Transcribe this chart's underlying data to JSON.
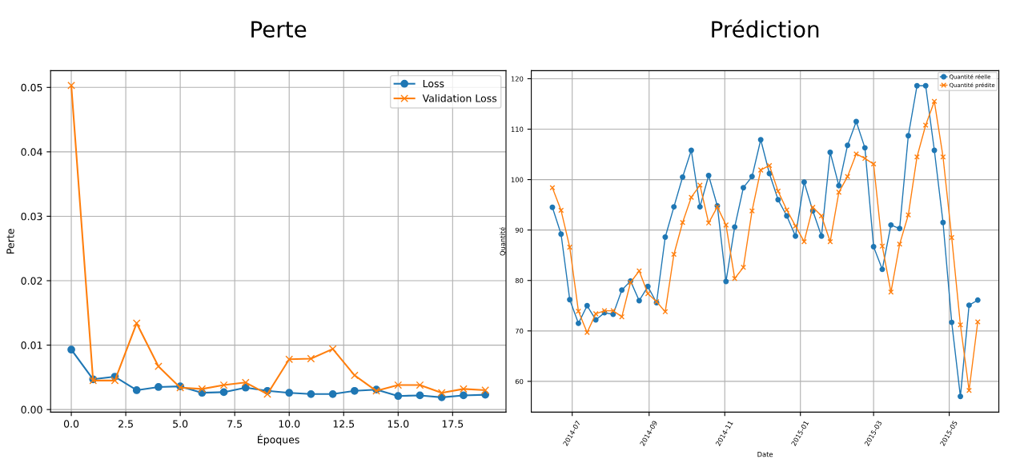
{
  "chart_data": [
    {
      "type": "line",
      "title": "Perte",
      "xlabel": "Époques",
      "ylabel": "Perte",
      "x": [
        0,
        1,
        2,
        3,
        4,
        5,
        6,
        7,
        8,
        9,
        10,
        11,
        12,
        13,
        14,
        15,
        16,
        17,
        18,
        19
      ],
      "series": [
        {
          "name": "Loss",
          "color": "#1f77b4",
          "marker": "circle",
          "values": [
            0.0093,
            0.0047,
            0.0051,
            0.003,
            0.0035,
            0.0036,
            0.0026,
            0.0027,
            0.0034,
            0.0029,
            0.0026,
            0.0024,
            0.0024,
            0.0029,
            0.0031,
            0.0021,
            0.0022,
            0.0019,
            0.0022,
            0.0023
          ]
        },
        {
          "name": "Validation Loss",
          "color": "#ff7f0e",
          "marker": "cross",
          "values": [
            0.0503,
            0.0045,
            0.0045,
            0.0134,
            0.0067,
            0.0034,
            0.0032,
            0.0038,
            0.0042,
            0.0024,
            0.0078,
            0.0079,
            0.0094,
            0.0053,
            0.0029,
            0.0038,
            0.0038,
            0.0026,
            0.0032,
            0.003
          ]
        }
      ],
      "xlim": [
        -0.95,
        19.95
      ],
      "xticks": [
        {
          "value": 0,
          "label": "0.0"
        },
        {
          "value": 2.5,
          "label": "2.5"
        },
        {
          "value": 5,
          "label": "5.0"
        },
        {
          "value": 7.5,
          "label": "7.5"
        },
        {
          "value": 10,
          "label": "10.0"
        },
        {
          "value": 12.5,
          "label": "12.5"
        },
        {
          "value": 15,
          "label": "15.0"
        },
        {
          "value": 17.5,
          "label": "17.5"
        }
      ],
      "ylim": [
        -0.0004,
        0.0526
      ],
      "yticks": [
        {
          "value": 0,
          "label": "0.00"
        },
        {
          "value": 0.01,
          "label": "0.01"
        },
        {
          "value": 0.02,
          "label": "0.02"
        },
        {
          "value": 0.03,
          "label": "0.03"
        },
        {
          "value": 0.04,
          "label": "0.04"
        },
        {
          "value": 0.05,
          "label": "0.05"
        }
      ],
      "grid": true,
      "legend": "top right",
      "line_style": "solid"
    },
    {
      "type": "line",
      "title": "Prédiction",
      "xlabel": "Date",
      "ylabel": "Quantité",
      "x": [
        "2014-06-15",
        "2014-06-22",
        "2014-06-29",
        "2014-07-06",
        "2014-07-13",
        "2014-07-20",
        "2014-07-27",
        "2014-08-03",
        "2014-08-10",
        "2014-08-17",
        "2014-08-24",
        "2014-08-31",
        "2014-09-07",
        "2014-09-14",
        "2014-09-21",
        "2014-09-28",
        "2014-10-05",
        "2014-10-12",
        "2014-10-19",
        "2014-10-26",
        "2014-11-02",
        "2014-11-09",
        "2014-11-16",
        "2014-11-23",
        "2014-11-30",
        "2014-12-07",
        "2014-12-14",
        "2014-12-21",
        "2014-12-28",
        "2015-01-04",
        "2015-01-11",
        "2015-01-18",
        "2015-01-25",
        "2015-02-01",
        "2015-02-08",
        "2015-02-15",
        "2015-02-22",
        "2015-03-01",
        "2015-03-08",
        "2015-03-15",
        "2015-03-22",
        "2015-03-29",
        "2015-04-05",
        "2015-04-12",
        "2015-04-19",
        "2015-04-26",
        "2015-05-03",
        "2015-05-10",
        "2015-05-17",
        "2015-05-24"
      ],
      "series": [
        {
          "name": "Quantité réelle",
          "color": "#1f77b4",
          "marker": "circle",
          "values": [
            94.5,
            89.2,
            76.2,
            71.5,
            75.0,
            72.2,
            73.6,
            73.3,
            78.1,
            79.9,
            76.0,
            78.8,
            75.6,
            88.6,
            94.6,
            100.5,
            105.8,
            94.6,
            100.8,
            94.8,
            79.8,
            90.6,
            98.4,
            100.6,
            107.9,
            101.2,
            96.0,
            92.8,
            88.8,
            99.5,
            93.8,
            88.8,
            105.4,
            98.8,
            106.8,
            111.5,
            106.3,
            86.7,
            82.2,
            91.0,
            90.3,
            108.7,
            118.6,
            118.6,
            105.8,
            91.5,
            71.7,
            57.0,
            75.1,
            76.1
          ]
        },
        {
          "name": "Quantité prédite",
          "color": "#ff7f0e",
          "marker": "cross",
          "values": [
            98.4,
            93.9,
            86.6,
            73.9,
            69.7,
            73.4,
            74.0,
            74.0,
            72.8,
            79.6,
            81.9,
            77.4,
            75.8,
            73.8,
            85.2,
            91.5,
            96.5,
            98.9,
            91.4,
            94.6,
            91.0,
            80.4,
            82.6,
            93.8,
            101.9,
            102.8,
            97.7,
            94.0,
            90.8,
            87.7,
            94.5,
            92.8,
            87.7,
            97.5,
            100.6,
            105.1,
            104.2,
            103.1,
            86.8,
            77.7,
            87.2,
            93.0,
            104.5,
            110.8,
            115.5,
            104.5,
            88.5,
            71.2,
            58.2,
            71.8
          ]
        }
      ],
      "xlim": [
        "2014-05-29",
        "2015-06-10"
      ],
      "xticks": [
        {
          "value": "2014-07-01",
          "label": "2014-07"
        },
        {
          "value": "2014-09-01",
          "label": "2014-09"
        },
        {
          "value": "2014-11-01",
          "label": "2014-11"
        },
        {
          "value": "2015-01-01",
          "label": "2015-01"
        },
        {
          "value": "2015-03-01",
          "label": "2015-03"
        },
        {
          "value": "2015-05-01",
          "label": "2015-05"
        }
      ],
      "ylim": [
        53.9,
        121.6
      ],
      "yticks": [
        60,
        70,
        80,
        90,
        100,
        110,
        120
      ],
      "grid": true,
      "legend": "top right",
      "line_style": "solid"
    }
  ]
}
